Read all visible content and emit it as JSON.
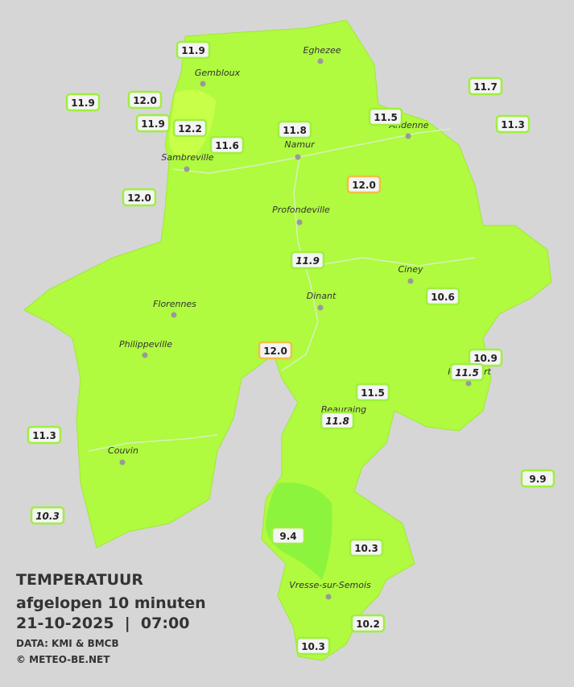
{
  "title": {
    "lines": [
      "TEMPERATUUR",
      "afgelopen 10 minuten",
      "21-10-2025  |  07:00"
    ],
    "credits": [
      "DATA: KMI & BMCB",
      "© METEO-BE.NET"
    ]
  },
  "cities": [
    "Eghezee",
    "Gembloux",
    "Andenne",
    "Namur",
    "Sambreville",
    "Profondeville",
    "Ciney",
    "Dinant",
    "Florennes",
    "Philippeville",
    "Beauraing",
    "Rochefort",
    "Couvin",
    "Vresse-sur-Semois"
  ],
  "stations": [
    {
      "label": "11.9"
    },
    {
      "label": "11.9"
    },
    {
      "label": "12.0"
    },
    {
      "label": "11.9"
    },
    {
      "label": "12.2"
    },
    {
      "label": "11.6"
    },
    {
      "label": "11.8"
    },
    {
      "label": "11.5"
    },
    {
      "label": "11.7"
    },
    {
      "label": "11.3"
    },
    {
      "label": "12.0"
    },
    {
      "label": "12.0",
      "border": "#f0c040"
    },
    {
      "label": "11.9",
      "italic": true
    },
    {
      "label": "10.6"
    },
    {
      "label": "12.0",
      "border": "#f0c040"
    },
    {
      "label": "10.9"
    },
    {
      "label": "11.5",
      "italic": true
    },
    {
      "label": "11.5"
    },
    {
      "label": "11.8",
      "italic": true
    },
    {
      "label": "11.3"
    },
    {
      "label": "10.3",
      "italic": true
    },
    {
      "label": "9.9"
    },
    {
      "label": "9.4"
    },
    {
      "label": "10.3"
    },
    {
      "label": "10.2"
    },
    {
      "label": "10.3"
    }
  ]
}
